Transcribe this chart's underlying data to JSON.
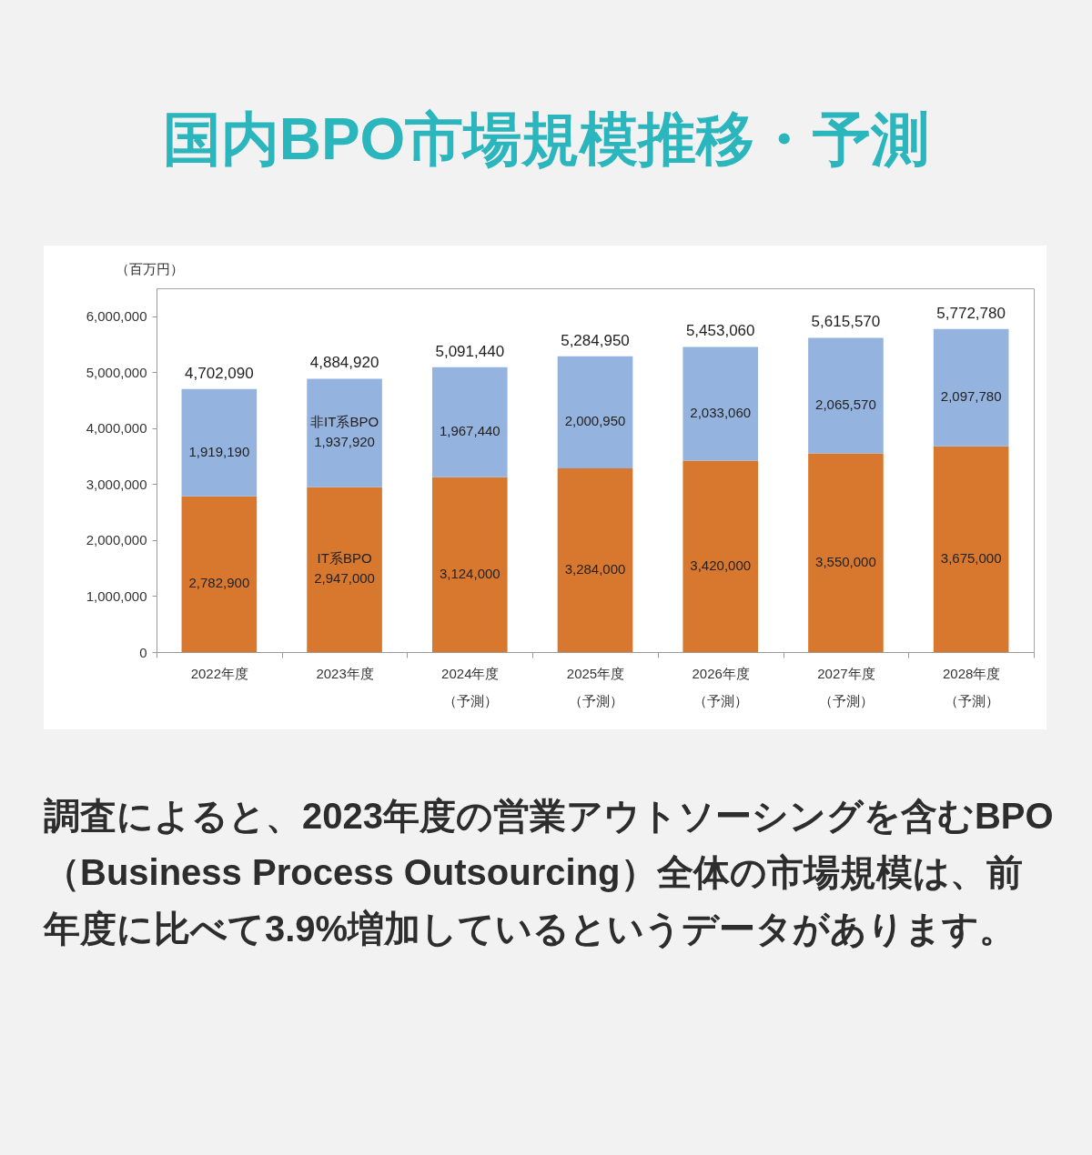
{
  "chart_data": {
    "type": "bar",
    "title": "国内BPO市場規模推移・予測",
    "ylabel": "（百万円）",
    "categories": [
      "2022年度",
      "2023年度",
      "2024年度（予測）",
      "2025年度（予測）",
      "2026年度（予測）",
      "2027年度（予測）",
      "2028年度（予測）"
    ],
    "stacked": true,
    "series": [
      {
        "name": "IT系BPO",
        "color": "#d8782f",
        "values": [
          2782900,
          2947000,
          3124000,
          3284000,
          3420000,
          3550000,
          3675000
        ],
        "value_labels": [
          "2,782,900",
          "2,947,000",
          "3,124,000",
          "3,284,000",
          "3,420,000",
          "3,550,000",
          "3,675,000"
        ]
      },
      {
        "name": "非IT系BPO",
        "color": "#95b3df",
        "values": [
          1919190,
          1937920,
          1967440,
          2000950,
          2033060,
          2065570,
          2097780
        ],
        "value_labels": [
          "1,919,190",
          "1,937,920",
          "1,967,440",
          "2,000,950",
          "2,033,060",
          "2,065,570",
          "2,097,780"
        ]
      }
    ],
    "totals": [
      "4,702,090",
      "4,884,920",
      "5,091,440",
      "5,284,950",
      "5,453,060",
      "5,615,570",
      "5,772,780"
    ],
    "ylim": [
      0,
      6500000
    ],
    "yticks": [
      {
        "value": 0,
        "label": "0"
      },
      {
        "value": 1000000,
        "label": "1,000,000"
      },
      {
        "value": 2000000,
        "label": "2,000,000"
      },
      {
        "value": 3000000,
        "label": "3,000,000"
      },
      {
        "value": 4000000,
        "label": "4,000,000"
      },
      {
        "value": 5000000,
        "label": "5,000,000"
      },
      {
        "value": 6000000,
        "label": "6,000,000"
      }
    ],
    "annotations": [
      "調査によると、2023年度の営業アウトソーシングを含むBPO（Business Process Outsourcing）全体の市場規模は、前年度に比べて3.9%増加しているというデータがあります。"
    ]
  }
}
